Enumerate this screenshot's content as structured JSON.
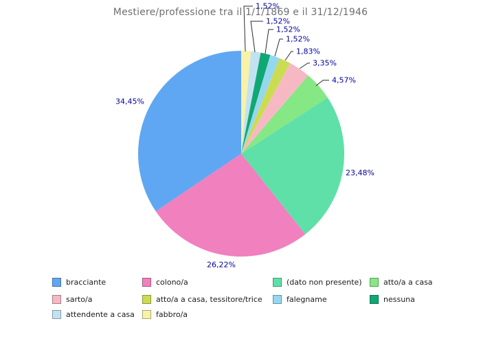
{
  "title": "Mestiere/professione tra il 1/1/1869 e il 31/12/1946",
  "chart_data": {
    "type": "pie",
    "title": "Mestiere/professione tra il 1/1/1869 e il 31/12/1946",
    "value_unit": "percent",
    "decimal_separator": ",",
    "orientation": "slices listed in descending order, drawn counterclockwise from 12 o'clock",
    "legend_position": "bottom",
    "label_color": "#00009c",
    "title_color": "#6e6e6e",
    "slices": [
      {
        "label": "bracciante",
        "value": 34.45,
        "display": "34,45%",
        "color": "#5fa7f2"
      },
      {
        "label": "colono/a",
        "value": 26.22,
        "display": "26,22%",
        "color": "#f080be"
      },
      {
        "label": "(dato non presente)",
        "value": 23.48,
        "display": "23,48%",
        "color": "#5fe0a8"
      },
      {
        "label": "atto/a a casa",
        "value": 4.57,
        "display": "4,57%",
        "color": "#86e884"
      },
      {
        "label": "sarto/a",
        "value": 3.35,
        "display": "3,35%",
        "color": "#f6b9c4"
      },
      {
        "label": "atto/a a casa, tessitore/trice",
        "value": 1.83,
        "display": "1,83%",
        "color": "#cbdc52"
      },
      {
        "label": "falegname",
        "value": 1.52,
        "display": "1,52%",
        "color": "#96d7f0"
      },
      {
        "label": "nessuna",
        "value": 1.52,
        "display": "1,52%",
        "color": "#0fa873"
      },
      {
        "label": "attendente a casa",
        "value": 1.52,
        "display": "1,52%",
        "color": "#c2e2f2"
      },
      {
        "label": "fabbro/a",
        "value": 1.52,
        "display": "1,52%",
        "color": "#f8f2a8"
      }
    ]
  }
}
